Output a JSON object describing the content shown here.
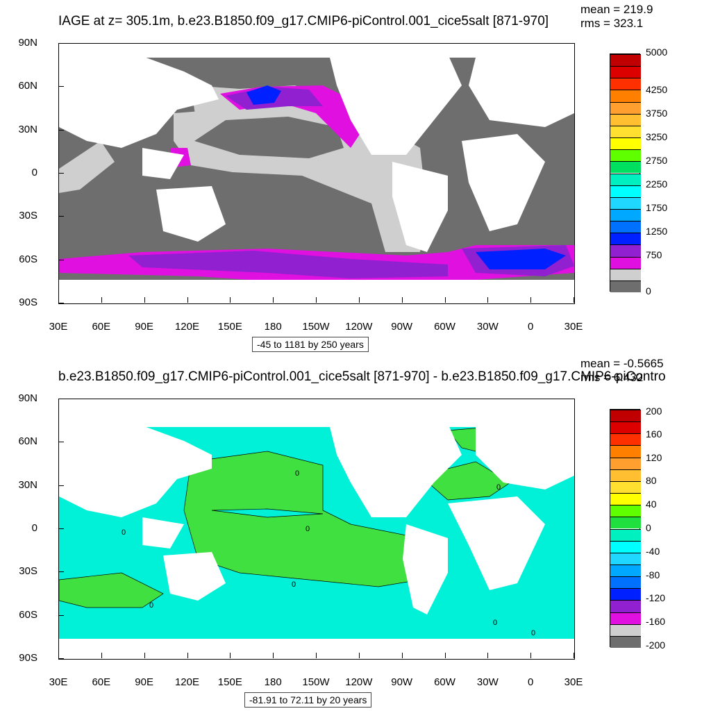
{
  "panels": [
    {
      "title": "IAGE at z= 305.1m, b.e23.B1850.f09_g17.CMIP6-piControl.001_cice5salt [871-970]",
      "mean": "mean = 219.9",
      "rms": "rms = 323.1",
      "caption": "-45 to 1181 by 250 years",
      "y_ticks": [
        "90N",
        "60N",
        "30N",
        "0",
        "30S",
        "60S",
        "90S"
      ],
      "x_ticks": [
        "30E",
        "60E",
        "90E",
        "120E",
        "150E",
        "180",
        "150W",
        "120W",
        "90W",
        "60W",
        "30W",
        "0",
        "30E"
      ],
      "legend_labels": [
        "5000",
        "4250",
        "3750",
        "3250",
        "2750",
        "2250",
        "1750",
        "1250",
        "750",
        "0"
      ],
      "legend_colors": [
        "#c00000",
        "#dd0000",
        "#ff3000",
        "#ff7f00",
        "#ff9f30",
        "#ffbf30",
        "#ffdf30",
        "#ffff00",
        "#60ff00",
        "#00e060",
        "#00f0c0",
        "#00ffff",
        "#20d8ff",
        "#00a8ff",
        "#0070ff",
        "#0020ff",
        "#9020d0",
        "#e010e0",
        "#cfcfcf",
        "#6e6e6e"
      ],
      "map_colors": {
        "land": "#ffffff",
        "deep": "#6e6e6e",
        "light": "#cfcfcf",
        "magenta": "#e010e0",
        "purple": "#9020d0",
        "blue": "#0020ff"
      }
    },
    {
      "title": "b.e23.B1850.f09_g17.CMIP6-piControl.001_cice5salt [871-970] - b.e23.B1850.f09_g17.CMIP6-piContro",
      "mean": "mean = -0.5665",
      "rms": "rms = 6.432",
      "caption": "-81.91 to 72.11 by 20 years",
      "y_ticks": [
        "90N",
        "60N",
        "30N",
        "0",
        "30S",
        "60S",
        "90S"
      ],
      "x_ticks": [
        "30E",
        "60E",
        "90E",
        "120E",
        "150E",
        "180",
        "150W",
        "120W",
        "90W",
        "60W",
        "30W",
        "0",
        "30E"
      ],
      "legend_labels": [
        "200",
        "160",
        "120",
        "80",
        "40",
        "0",
        "-40",
        "-80",
        "-120",
        "-160",
        "-200"
      ],
      "legend_colors": [
        "#c00000",
        "#dd0000",
        "#ff3000",
        "#ff7f00",
        "#ff9f30",
        "#ffbf30",
        "#ffdf30",
        "#ffff00",
        "#60ff00",
        "#20e040",
        "#00f0c0",
        "#00ffff",
        "#20d8ff",
        "#00a8ff",
        "#0070ff",
        "#0020ff",
        "#9020d0",
        "#e010e0",
        "#cfcfcf",
        "#6e6e6e"
      ],
      "contour_labels": [
        "0",
        "0",
        "0",
        "0",
        "0",
        "0",
        "0",
        "0"
      ],
      "map_colors": {
        "land": "#ffffff",
        "cyan": "#00f0d8",
        "green": "#40e040",
        "contour": "#000000"
      }
    }
  ]
}
